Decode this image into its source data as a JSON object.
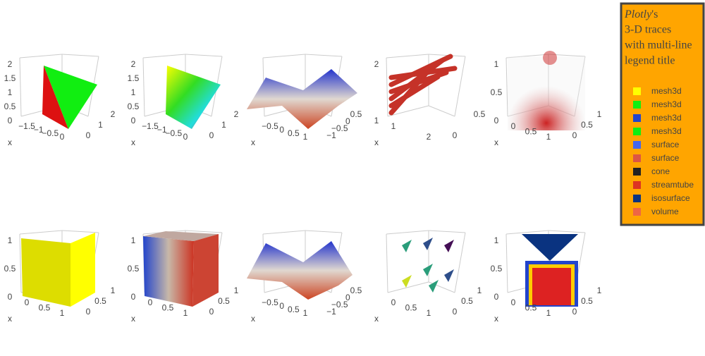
{
  "legend": {
    "title": {
      "italic": "Plotly",
      "suffix": "'s",
      "lines": [
        "3-D traces",
        "with multi-line",
        "legend title"
      ]
    },
    "items": [
      "mesh3d",
      "mesh3d",
      "mesh3d",
      "mesh3d",
      "surface",
      "surface",
      "cone",
      "streamtube",
      "isosurface",
      "volume"
    ]
  },
  "scenes": [
    {
      "axis_label": "x",
      "zticks": [
        "0",
        "0.5",
        "1",
        "1.5",
        "2"
      ],
      "xticks": [
        "−1.5",
        "−1",
        "−0.5",
        "0"
      ],
      "yticks": [
        "0",
        "1",
        "2"
      ]
    },
    {
      "axis_label": "x",
      "zticks": [
        "0",
        "0.5",
        "1",
        "1.5",
        "2"
      ],
      "xticks": [
        "−1.5",
        "−1",
        "−0.5",
        "0"
      ],
      "yticks": [
        "0",
        "1",
        "2"
      ]
    },
    {
      "axis_label": "x",
      "zticks": [],
      "xticks": [
        "−0.5",
        "0",
        "0.5",
        "1"
      ],
      "yticks": [
        "−1",
        "−0.5",
        "0",
        "0.5"
      ]
    },
    {
      "axis_label": "x",
      "zticks": [
        "1",
        "2"
      ],
      "xticks": [
        "1",
        "2"
      ],
      "yticks": [
        "0",
        "0.5"
      ]
    },
    {
      "axis_label": "x",
      "zticks": [
        "0",
        "0.5",
        "1"
      ],
      "xticks": [
        "0",
        "0.5",
        "1"
      ],
      "yticks": [
        "0",
        "0.5",
        "1"
      ]
    },
    {
      "axis_label": "x",
      "zticks": [
        "0",
        "0.5",
        "1"
      ],
      "xticks": [
        "0",
        "0.5",
        "1"
      ],
      "yticks": [
        "0",
        "0.5",
        "1"
      ]
    },
    {
      "axis_label": "x",
      "zticks": [
        "0",
        "0.5",
        "1"
      ],
      "xticks": [
        "0",
        "0.5",
        "1"
      ],
      "yticks": [
        "0",
        "0.5",
        "1"
      ]
    },
    {
      "axis_label": "x",
      "zticks": [],
      "xticks": [
        "−0.5",
        "0",
        "0.5",
        "1"
      ],
      "yticks": [
        "−1",
        "−0.5",
        "0",
        "0.5"
      ]
    },
    {
      "axis_label": "x",
      "zticks": [],
      "xticks": [
        "0",
        "0.5",
        "1"
      ],
      "yticks": [
        "0",
        "0.5",
        "1"
      ]
    },
    {
      "axis_label": "x",
      "zticks": [
        "0",
        "0.5",
        "1"
      ],
      "xticks": [
        "0",
        "0.5",
        "1"
      ],
      "yticks": [
        "0",
        "0.5",
        "1"
      ]
    }
  ]
}
